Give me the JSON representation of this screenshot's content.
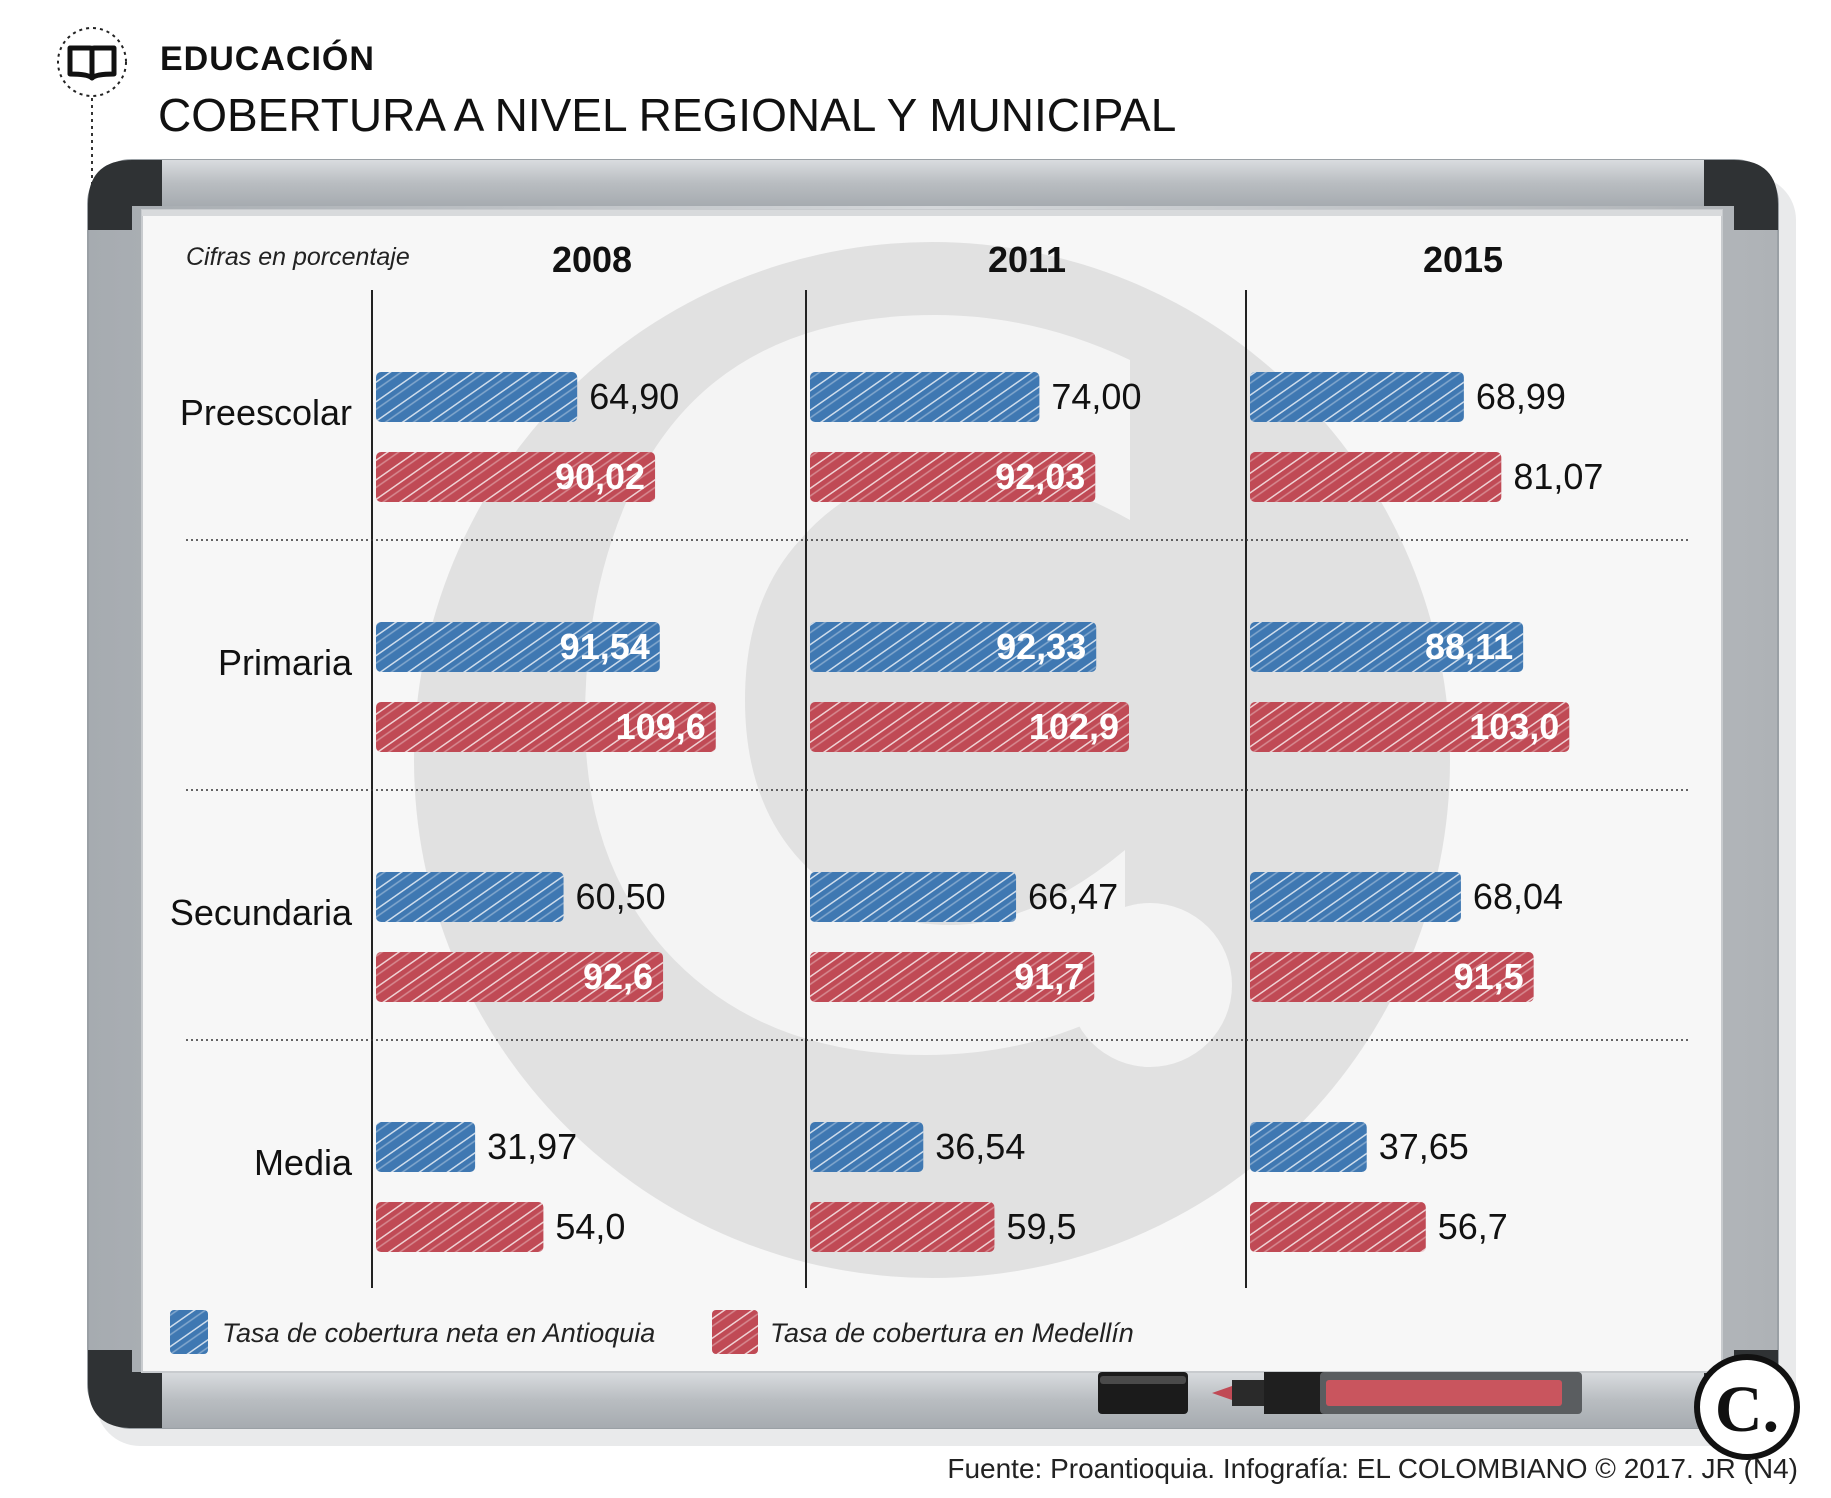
{
  "header": {
    "section": "EDUCACIÓN",
    "title": "COBERTURA A NIVEL REGIONAL Y MUNICIPAL"
  },
  "note": "Cifras en porcentaje",
  "source": "Fuente: Proantioquia. Infografía: EL COLOMBIANO © 2017. JR (N4)",
  "logo_text": "C.",
  "colors": {
    "antioquia": "#3f78b2",
    "medellin": "#c04a55",
    "frame": "#bfc3c7",
    "text": "#111111"
  },
  "chart_data": {
    "type": "bar",
    "orientation": "horizontal",
    "unit": "Cifras en porcentaje",
    "panels": [
      "2008",
      "2011",
      "2015"
    ],
    "categories": [
      "Preescolar",
      "Primaria",
      "Secundaria",
      "Media"
    ],
    "series": [
      {
        "name": "Tasa de cobertura neta en Antioquia",
        "color": "#3f78b2",
        "values": {
          "2008": [
            64.9,
            91.54,
            60.5,
            31.97
          ],
          "2011": [
            74.0,
            92.33,
            66.47,
            36.54
          ],
          "2015": [
            68.99,
            88.11,
            68.04,
            37.65
          ]
        },
        "labels": {
          "2008": [
            "64,90",
            "91,54",
            "60,50",
            "31,97"
          ],
          "2011": [
            "74,00",
            "92,33",
            "66,47",
            "36,54"
          ],
          "2015": [
            "68,99",
            "88,11",
            "68,04",
            "37,65"
          ]
        }
      },
      {
        "name": "Tasa de cobertura en Medellín",
        "color": "#c04a55",
        "values": {
          "2008": [
            90.02,
            109.6,
            92.6,
            54.0
          ],
          "2011": [
            92.03,
            102.9,
            91.7,
            59.5
          ],
          "2015": [
            81.07,
            103.0,
            91.5,
            56.7
          ]
        },
        "labels": {
          "2008": [
            "90,02",
            "109,6",
            "92,6",
            "54,0"
          ],
          "2011": [
            "92,03",
            "102,9",
            "91,7",
            "59,5"
          ],
          "2015": [
            "81,07",
            "103,0",
            "91,5",
            "56,7"
          ]
        }
      }
    ]
  }
}
